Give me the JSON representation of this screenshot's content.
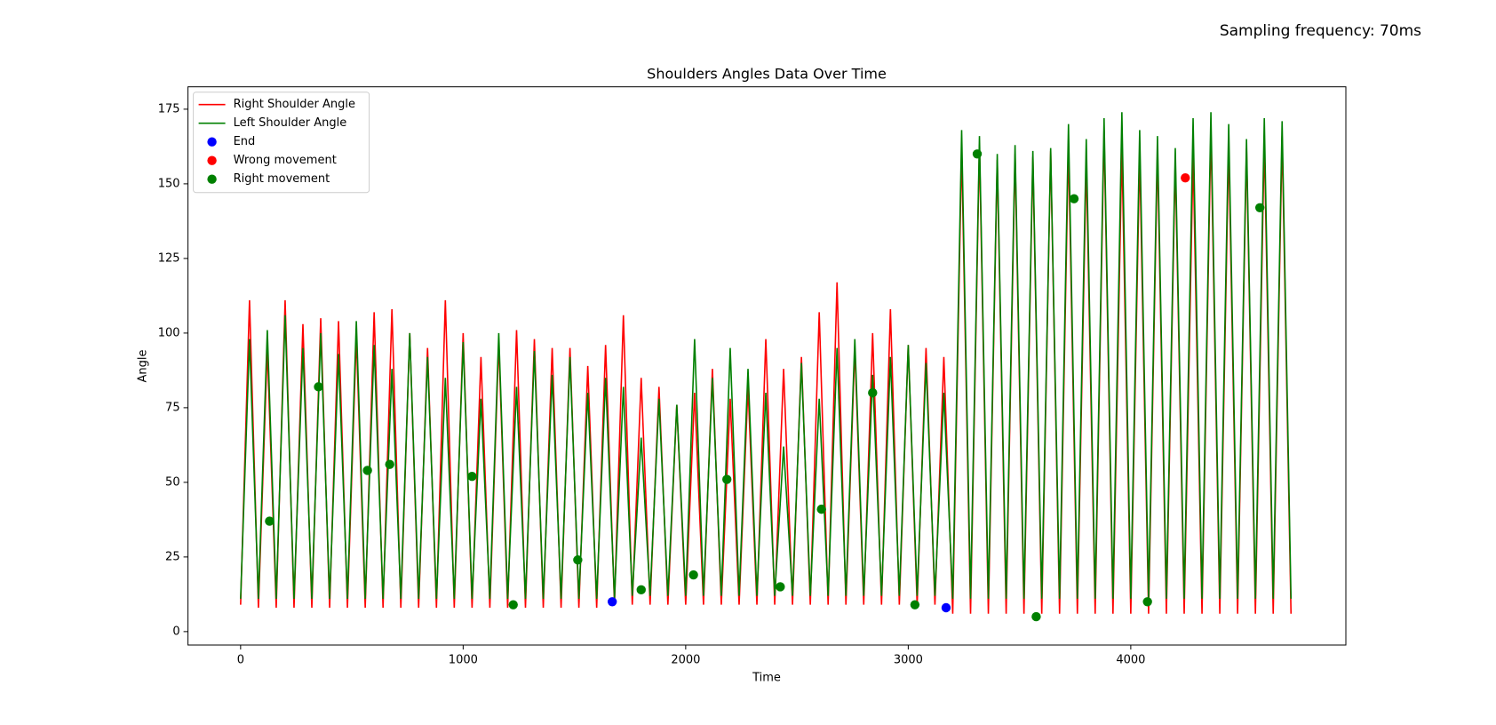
{
  "chart_data": {
    "type": "line",
    "title": "Shoulders Angles Data Over Time",
    "annotation": "Sampling frequency: 70ms",
    "x_label": "Time",
    "y_label": "Angle",
    "xlim": [
      -236.5,
      4966.5
    ],
    "ylim": [
      -4.5,
      182.5
    ],
    "xticks": [
      0,
      1000,
      2000,
      3000,
      4000
    ],
    "yticks": [
      0,
      25,
      50,
      75,
      100,
      125,
      150,
      175
    ],
    "legend": "upper left",
    "x": [
      0,
      40,
      80,
      120,
      160,
      200,
      240,
      280,
      320,
      360,
      400,
      440,
      480,
      520,
      560,
      600,
      640,
      680,
      720,
      760,
      800,
      840,
      880,
      920,
      960,
      1000,
      1040,
      1080,
      1120,
      1160,
      1200,
      1240,
      1280,
      1320,
      1360,
      1400,
      1440,
      1480,
      1520,
      1560,
      1600,
      1640,
      1680,
      1720,
      1760,
      1800,
      1840,
      1880,
      1920,
      1960,
      2000,
      2040,
      2080,
      2120,
      2160,
      2200,
      2240,
      2280,
      2320,
      2360,
      2400,
      2440,
      2480,
      2520,
      2560,
      2600,
      2640,
      2680,
      2720,
      2760,
      2800,
      2840,
      2880,
      2920,
      2960,
      3000,
      3040,
      3080,
      3120,
      3160,
      3200,
      3240,
      3280,
      3320,
      3360,
      3400,
      3440,
      3480,
      3520,
      3560,
      3600,
      3640,
      3680,
      3720,
      3760,
      3800,
      3840,
      3880,
      3920,
      3960,
      4000,
      4040,
      4080,
      4120,
      4160,
      4200,
      4240,
      4280,
      4320,
      4360,
      4400,
      4440,
      4480,
      4520,
      4560,
      4600,
      4640,
      4680,
      4720
    ],
    "series": [
      {
        "name": "Right Shoulder Angle",
        "color": "#ff0000",
        "values": [
          9,
          111,
          8,
          95,
          8,
          111,
          8,
          103,
          8,
          105,
          8,
          104,
          8,
          99,
          8,
          107,
          8,
          108,
          8,
          100,
          8,
          95,
          8,
          111,
          8,
          100,
          8,
          92,
          8,
          97,
          8,
          101,
          8,
          98,
          8,
          95,
          8,
          95,
          8,
          89,
          8,
          96,
          9,
          106,
          9,
          85,
          9,
          82,
          9,
          76,
          9,
          80,
          9,
          88,
          9,
          78,
          9,
          82,
          9,
          98,
          9,
          88,
          9,
          92,
          9,
          107,
          9,
          117,
          9,
          95,
          9,
          100,
          9,
          108,
          9,
          96,
          9,
          95,
          9,
          92,
          6,
          162,
          6,
          163,
          6,
          158,
          6,
          160,
          6,
          159,
          6,
          161,
          6,
          163,
          6,
          158,
          6,
          168,
          6,
          162,
          6,
          160,
          6,
          161,
          6,
          158,
          6,
          160,
          6,
          168,
          6,
          163,
          6,
          162,
          6,
          165,
          6,
          166,
          6
        ]
      },
      {
        "name": "Left Shoulder Angle",
        "color": "#008000",
        "values": [
          11,
          98,
          11,
          101,
          11,
          106,
          11,
          95,
          11,
          100,
          11,
          93,
          11,
          104,
          11,
          96,
          11,
          88,
          11,
          100,
          11,
          92,
          11,
          85,
          11,
          97,
          11,
          78,
          11,
          100,
          11,
          82,
          11,
          94,
          11,
          86,
          11,
          92,
          11,
          80,
          11,
          85,
          11,
          82,
          12,
          65,
          12,
          78,
          12,
          76,
          12,
          98,
          12,
          85,
          12,
          95,
          12,
          88,
          12,
          80,
          12,
          62,
          12,
          90,
          12,
          78,
          12,
          95,
          12,
          98,
          12,
          86,
          12,
          92,
          12,
          96,
          12,
          90,
          12,
          80,
          11,
          168,
          11,
          166,
          11,
          160,
          11,
          163,
          11,
          161,
          11,
          162,
          11,
          170,
          11,
          165,
          11,
          172,
          11,
          174,
          11,
          168,
          11,
          166,
          11,
          162,
          11,
          172,
          11,
          174,
          11,
          170,
          11,
          165,
          11,
          172,
          11,
          171,
          11
        ]
      }
    ],
    "points": [
      {
        "name": "End",
        "color": "#0000ff",
        "x": [
          1670,
          3170
        ],
        "y": [
          10,
          8
        ]
      },
      {
        "name": "Wrong movement",
        "color": "#ff0000",
        "x": [
          4245
        ],
        "y": [
          152
        ]
      },
      {
        "name": "Right movement",
        "color": "#008000",
        "x": [
          130,
          350,
          570,
          670,
          1040,
          1225,
          1515,
          1800,
          2035,
          2185,
          2425,
          2610,
          2840,
          3030,
          3310,
          3575,
          3745,
          4075,
          4580
        ],
        "y": [
          37,
          82,
          54,
          56,
          52,
          9,
          24,
          14,
          19,
          51,
          15,
          41,
          80,
          9,
          160,
          5,
          145,
          10,
          142
        ]
      }
    ]
  }
}
